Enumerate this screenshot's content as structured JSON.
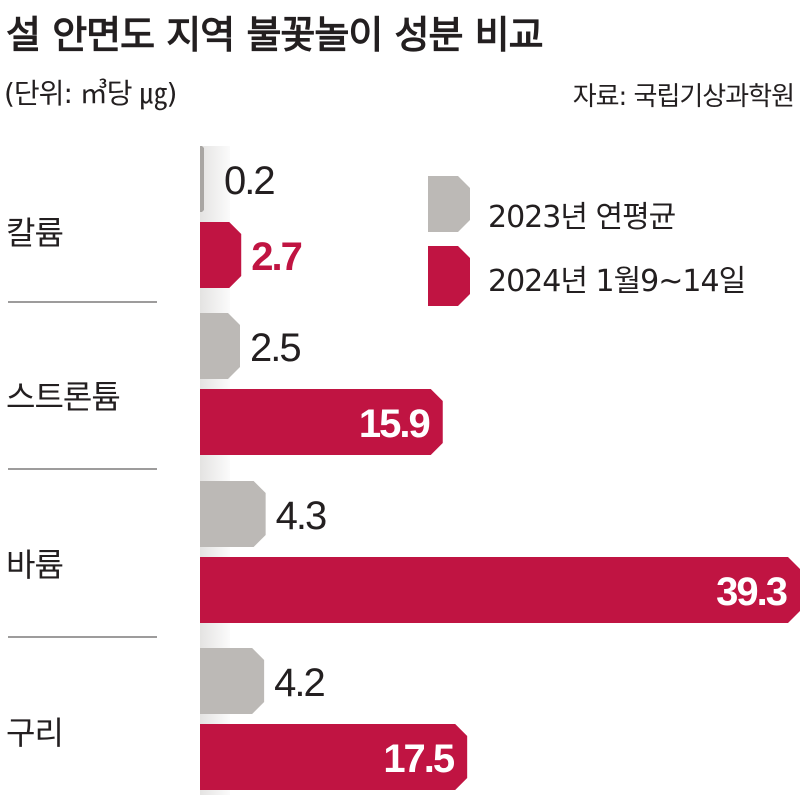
{
  "chart_data": {
    "type": "bar",
    "orientation": "horizontal",
    "title": "설 안면도 지역 불꽃놀이 성분 비교",
    "unit": "(단위: ㎥당 ㎍)",
    "source": "자료: 국립기상과학원",
    "categories": [
      "칼륨",
      "스트론튬",
      "바륨",
      "구리"
    ],
    "series": [
      {
        "name": "2023년 연평균",
        "color": "#bcb9b6",
        "values": [
          0.2,
          2.5,
          4.3,
          4.2
        ]
      },
      {
        "name": "2024년 1월9~14일",
        "color": "#c01442",
        "values": [
          2.7,
          15.9,
          39.3,
          17.5
        ]
      }
    ],
    "value_labels": [
      [
        "0.2",
        "2.5",
        "4.3",
        "4.2"
      ],
      [
        "2.7",
        "15.9",
        "39.3",
        "17.5"
      ]
    ],
    "xlim": [
      0,
      39.3
    ],
    "legend": "top-right",
    "grid": false
  }
}
